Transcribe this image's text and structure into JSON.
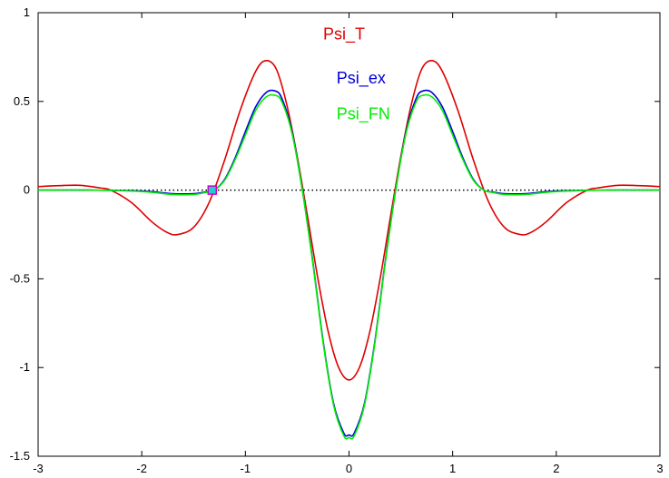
{
  "chart_data": {
    "type": "line",
    "title": "",
    "xlabel": "",
    "ylabel": "",
    "xlim": [
      -3,
      3
    ],
    "ylim": [
      -1.5,
      1
    ],
    "x_ticks": [
      -3,
      -2,
      -1,
      0,
      1,
      2,
      3
    ],
    "x_tick_labels": [
      "-3",
      "-2",
      "-1",
      "0",
      "1",
      "2",
      "3"
    ],
    "y_ticks": [
      -1.5,
      -1,
      -0.5,
      0,
      0.5,
      1
    ],
    "y_tick_labels": [
      "-1.5",
      "-1",
      "-0.5",
      "0",
      "0.5",
      "1"
    ],
    "grid": false,
    "zero_line": {
      "y": 0,
      "style": "dotted",
      "color": "#000000"
    },
    "series": [
      {
        "name": "Psi_T",
        "color": "#dd0000",
        "x": [
          -3,
          -2.8,
          -2.6,
          -2.4,
          -2.3,
          -2.1,
          -1.9,
          -1.75,
          -1.65,
          -1.5,
          -1.35,
          -1.2,
          -1.05,
          -0.9,
          -0.8,
          -0.7,
          -0.6,
          -0.5,
          -0.4,
          -0.3,
          -0.2,
          -0.1,
          0,
          0.1,
          0.2,
          0.3,
          0.4,
          0.5,
          0.6,
          0.7,
          0.8,
          0.9,
          1.05,
          1.2,
          1.35,
          1.5,
          1.65,
          1.75,
          1.9,
          2.1,
          2.3,
          2.4,
          2.6,
          2.8,
          3
        ],
        "y": [
          0.02,
          0.025,
          0.027,
          0.012,
          0.0,
          -0.07,
          -0.18,
          -0.24,
          -0.25,
          -0.21,
          -0.07,
          0.17,
          0.45,
          0.67,
          0.73,
          0.68,
          0.48,
          0.19,
          -0.15,
          -0.5,
          -0.8,
          -1.0,
          -1.07,
          -1.0,
          -0.8,
          -0.5,
          -0.15,
          0.19,
          0.48,
          0.68,
          0.73,
          0.67,
          0.45,
          0.17,
          -0.07,
          -0.21,
          -0.25,
          -0.24,
          -0.18,
          -0.07,
          0.0,
          0.012,
          0.027,
          0.025,
          0.02
        ]
      },
      {
        "name": "Psi_ex",
        "color": "#0000dd",
        "x": [
          -3,
          -2.5,
          -2.0,
          -1.7,
          -1.5,
          -1.4,
          -1.3,
          -1.2,
          -1.1,
          -1.0,
          -0.9,
          -0.8,
          -0.72,
          -0.65,
          -0.55,
          -0.45,
          -0.35,
          -0.25,
          -0.15,
          -0.05,
          0,
          0.05,
          0.15,
          0.25,
          0.35,
          0.45,
          0.55,
          0.65,
          0.72,
          0.8,
          0.9,
          1.0,
          1.1,
          1.2,
          1.3,
          1.4,
          1.5,
          1.7,
          2.0,
          2.5,
          3
        ],
        "y": [
          0.0,
          0.0,
          -0.005,
          -0.02,
          -0.02,
          -0.012,
          0.0,
          0.06,
          0.18,
          0.33,
          0.47,
          0.55,
          0.56,
          0.52,
          0.33,
          0.0,
          -0.4,
          -0.85,
          -1.2,
          -1.37,
          -1.38,
          -1.37,
          -1.2,
          -0.85,
          -0.4,
          0.0,
          0.33,
          0.52,
          0.56,
          0.55,
          0.47,
          0.33,
          0.18,
          0.06,
          0.0,
          -0.012,
          -0.02,
          -0.02,
          -0.005,
          0.0,
          0.0
        ]
      },
      {
        "name": "Psi_FN",
        "color": "#00ee00",
        "x": [
          -3,
          -2.5,
          -2.0,
          -1.7,
          -1.5,
          -1.4,
          -1.3,
          -1.2,
          -1.1,
          -1.0,
          -0.9,
          -0.8,
          -0.72,
          -0.65,
          -0.55,
          -0.45,
          -0.35,
          -0.25,
          -0.15,
          -0.05,
          0,
          0.05,
          0.15,
          0.25,
          0.35,
          0.45,
          0.55,
          0.65,
          0.72,
          0.8,
          0.9,
          1.0,
          1.1,
          1.2,
          1.3,
          1.4,
          1.5,
          1.7,
          2.0,
          2.5,
          3
        ],
        "y": [
          0.0,
          0.0,
          -0.008,
          -0.025,
          -0.025,
          -0.015,
          0.0,
          0.055,
          0.17,
          0.31,
          0.45,
          0.525,
          0.535,
          0.5,
          0.32,
          0.0,
          -0.41,
          -0.86,
          -1.21,
          -1.385,
          -1.395,
          -1.385,
          -1.21,
          -0.86,
          -0.41,
          0.0,
          0.32,
          0.5,
          0.535,
          0.525,
          0.45,
          0.31,
          0.17,
          0.055,
          0.0,
          -0.015,
          -0.025,
          -0.025,
          -0.008,
          0.0,
          0.0
        ]
      }
    ],
    "labels": [
      {
        "text": "Psi_T",
        "color": "#dd0000",
        "x": -0.25,
        "y": 0.85
      },
      {
        "text": "Psi_ex",
        "color": "#0000dd",
        "x": -0.12,
        "y": 0.6
      },
      {
        "text": "Psi_FN",
        "color": "#00ee00",
        "x": -0.12,
        "y": 0.4
      }
    ],
    "markers": [
      {
        "x": -1.32,
        "y": 0.0,
        "fill": "#22cccc",
        "stroke": "#cc00cc"
      }
    ]
  }
}
